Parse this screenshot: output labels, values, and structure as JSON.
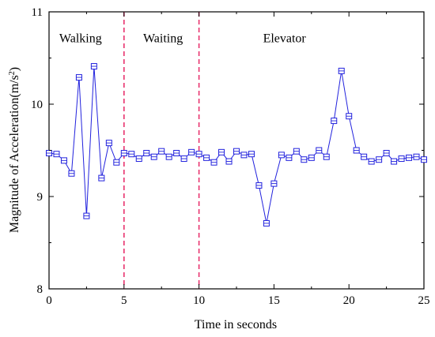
{
  "chart_data": {
    "type": "line",
    "xlabel": "Time in seconds",
    "ylabel": "Magnitude of Acceleration(m/s²)",
    "ylabel_parts": {
      "main": "Magnitude of Acceleration(m/s",
      "sup": "2",
      "close": ")"
    },
    "xlim": [
      0,
      25
    ],
    "ylim": [
      8,
      11
    ],
    "xticks": [
      0,
      5,
      10,
      15,
      20,
      25
    ],
    "yticks": [
      8,
      9,
      10,
      11
    ],
    "grid": false,
    "marker": "square",
    "color": "#2222dd",
    "divider_color": "#e8336e",
    "dividers": [
      5,
      10
    ],
    "phase_labels": [
      {
        "text": "Walking",
        "x": 2.1,
        "y": 10.67
      },
      {
        "text": "Waiting",
        "x": 7.6,
        "y": 10.67
      },
      {
        "text": "Elevator",
        "x": 15.7,
        "y": 10.67
      }
    ],
    "series": [
      {
        "x": [
          0,
          0.5,
          1,
          1.5,
          2,
          2.5,
          3,
          3.5,
          4,
          4.5,
          5,
          5.5,
          6,
          6.5,
          7,
          7.5,
          8,
          8.5,
          9,
          9.5,
          10,
          10.5,
          11,
          11.5,
          12,
          12.5,
          13,
          13.5,
          14,
          14.5,
          15,
          15.5,
          16,
          16.5,
          17,
          17.5,
          18,
          18.5,
          19,
          19.5,
          20,
          20.5,
          21,
          21.5,
          22,
          22.5,
          23,
          23.5,
          24,
          24.5,
          25
        ],
        "y": [
          9.47,
          9.46,
          9.39,
          9.25,
          10.29,
          8.79,
          10.41,
          9.2,
          9.58,
          9.37,
          9.47,
          9.46,
          9.41,
          9.47,
          9.43,
          9.49,
          9.43,
          9.47,
          9.41,
          9.48,
          9.46,
          9.42,
          9.37,
          9.48,
          9.38,
          9.49,
          9.45,
          9.46,
          9.12,
          8.71,
          9.14,
          9.45,
          9.42,
          9.49,
          9.4,
          9.42,
          9.5,
          9.43,
          9.82,
          10.36,
          9.87,
          9.5,
          9.43,
          9.38,
          9.4,
          9.47,
          9.38,
          9.41,
          9.42,
          9.43,
          9.4
        ]
      }
    ]
  }
}
